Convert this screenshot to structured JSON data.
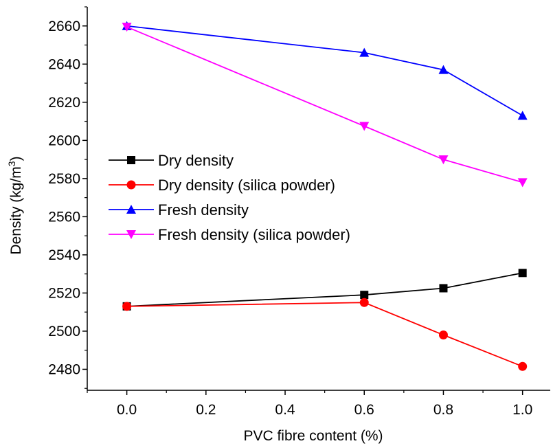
{
  "chart_data": {
    "type": "line",
    "xlabel": "PVC fibre content (%)",
    "ylabel_main": "Density (kg/m",
    "ylabel_sup": "3",
    "ylabel_close": ")",
    "xlim": [
      -0.1,
      1.07
    ],
    "ylim": [
      2469,
      2670
    ],
    "x_ticks": [
      0.0,
      0.2,
      0.4,
      0.6,
      0.8,
      1.0
    ],
    "x_tick_labels": [
      "0.0",
      "0.2",
      "0.4",
      "0.6",
      "0.8",
      "1.0"
    ],
    "y_ticks": [
      2480,
      2500,
      2520,
      2540,
      2560,
      2580,
      2600,
      2620,
      2640,
      2660
    ],
    "y_tick_labels": [
      "2480",
      "2500",
      "2520",
      "2540",
      "2560",
      "2580",
      "2600",
      "2620",
      "2640",
      "2660"
    ],
    "grid": false,
    "legend_position": "middle-left",
    "x": [
      0.0,
      0.6,
      0.8,
      1.0
    ],
    "series": [
      {
        "name": "Dry density",
        "color": "#000000",
        "marker": "square",
        "values": [
          2513,
          2519,
          2522.5,
          2530.5
        ]
      },
      {
        "name": "Dry density (silica powder)",
        "color": "#ff0000",
        "marker": "circle",
        "values": [
          2513,
          2515,
          2498,
          2481.5
        ]
      },
      {
        "name": "Fresh density",
        "color": "#0000ff",
        "marker": "triangle-up",
        "values": [
          2660,
          2646,
          2637,
          2613
        ]
      },
      {
        "name": "Fresh density (silica powder)",
        "color": "#ff00ff",
        "marker": "triangle-down",
        "values": [
          2659.5,
          2607.5,
          2590,
          2578
        ]
      }
    ]
  }
}
